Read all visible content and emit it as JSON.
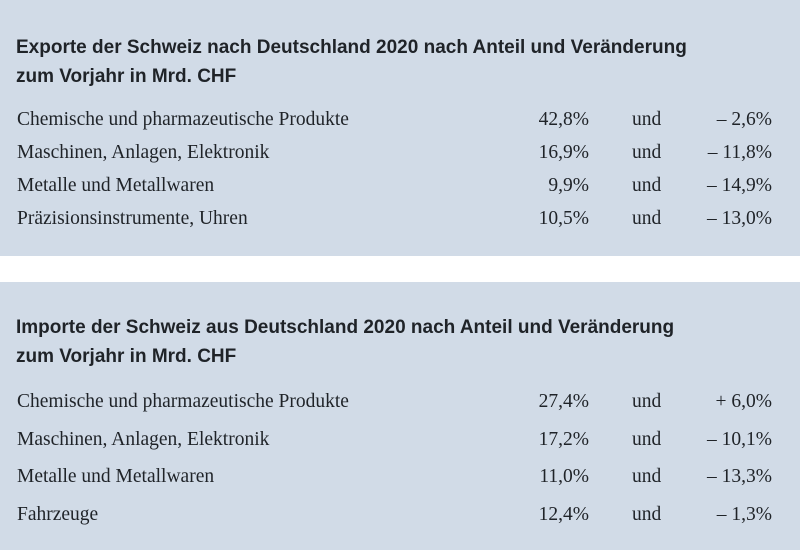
{
  "exports": {
    "title_line1": "Exporte der Schweiz nach Deutschland 2020 nach Anteil und Veränderung",
    "title_line2": "zum Vorjahr in Mrd. CHF",
    "rows": [
      {
        "label": "Chemische und pharmazeutische Produkte",
        "share": "42,8%",
        "connector": "und",
        "change": "– 2,6%"
      },
      {
        "label": "Maschinen, Anlagen, Elektronik",
        "share": "16,9%",
        "connector": "und",
        "change": "– 11,8%"
      },
      {
        "label": "Metalle und Metallwaren",
        "share": "9,9%",
        "connector": "und",
        "change": "– 14,9%"
      },
      {
        "label": "Präzisionsinstrumente, Uhren",
        "share": "10,5%",
        "connector": "und",
        "change": "– 13,0%"
      }
    ]
  },
  "imports": {
    "title_line1": "Importe der Schweiz aus Deutschland 2020 nach Anteil und Veränderung",
    "title_line2": "zum Vorjahr in Mrd. CHF",
    "rows": [
      {
        "label": "Chemische und pharmazeutische Produkte",
        "share": "27,4%",
        "connector": "und",
        "change": "+ 6,0%"
      },
      {
        "label": "Maschinen, Anlagen, Elektronik",
        "share": "17,2%",
        "connector": "und",
        "change": "– 10,1%"
      },
      {
        "label": "Metalle und Metallwaren",
        "share": "11,0%",
        "connector": "und",
        "change": "– 13,3%"
      },
      {
        "label": "Fahrzeuge",
        "share": "12,4%",
        "connector": "und",
        "change": "– 1,3%"
      }
    ]
  },
  "colors": {
    "panel_background": "#d1dbe7",
    "text": "#1f2328",
    "page_background": "#ffffff"
  }
}
